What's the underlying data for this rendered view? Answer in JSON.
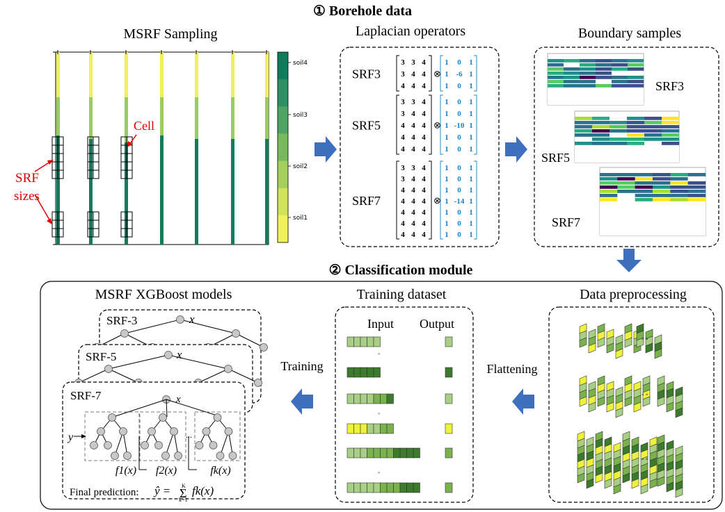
{
  "sections": {
    "borehole_title": "① Borehole data",
    "classification_title": "② Classification module"
  },
  "panels": {
    "msrf_sampling": {
      "title": "MSRF Sampling",
      "cell_label": "Cell",
      "srf_sizes_line1": "SRF",
      "srf_sizes_line2": "sizes",
      "soil_classes": [
        "soil4",
        "soil3",
        "soil2",
        "soil1"
      ]
    },
    "laplacian": {
      "title": "Laplacian operators",
      "operators": [
        {
          "name": "SRF3",
          "input": [
            [
              "3",
              "3",
              "4"
            ],
            [
              "3",
              "4",
              "4"
            ],
            [
              "4",
              "4",
              "4"
            ]
          ],
          "kernel": [
            [
              "1",
              "0",
              "1"
            ],
            [
              "1",
              "-6",
              "1"
            ],
            [
              "1",
              "0",
              "1"
            ]
          ]
        },
        {
          "name": "SRF5",
          "input": [
            [
              "3",
              "3",
              "4"
            ],
            [
              "3",
              "4",
              "4"
            ],
            [
              "4",
              "4",
              "4"
            ],
            [
              "4",
              "4",
              "4"
            ],
            [
              "4",
              "4",
              "4"
            ]
          ],
          "kernel": [
            [
              "1",
              "0",
              "1"
            ],
            [
              "1",
              "0",
              "1"
            ],
            [
              "1",
              "-10",
              "1"
            ],
            [
              "1",
              "0",
              "1"
            ],
            [
              "1",
              "0",
              "1"
            ]
          ]
        },
        {
          "name": "SRF7",
          "input": [
            [
              "3",
              "3",
              "4"
            ],
            [
              "3",
              "4",
              "4"
            ],
            [
              "4",
              "4",
              "4"
            ],
            [
              "4",
              "4",
              "4"
            ],
            [
              "4",
              "4",
              "4"
            ],
            [
              "4",
              "4",
              "4"
            ],
            [
              "4",
              "4",
              "4"
            ]
          ],
          "kernel": [
            [
              "1",
              "0",
              "1"
            ],
            [
              "1",
              "0",
              "1"
            ],
            [
              "1",
              "0",
              "1"
            ],
            [
              "1",
              "-14",
              "1"
            ],
            [
              "1",
              "0",
              "1"
            ],
            [
              "1",
              "0",
              "1"
            ],
            [
              "1",
              "0",
              "1"
            ]
          ]
        }
      ],
      "operator_symbol": "⊗"
    },
    "boundary": {
      "title": "Boundary samples",
      "labels": [
        "SRF3",
        "SRF5",
        "SRF7"
      ]
    },
    "preprocessing": {
      "title": "Data preprocessing",
      "flatten_label": "Flattening",
      "ellipsis": "◦ ◦"
    },
    "dataset": {
      "title": "Training dataset",
      "input_label": "Input",
      "output_label": "Output",
      "dots": "◦"
    },
    "models": {
      "title": "MSRF XGBoost models",
      "training_label": "Training",
      "cards": [
        "SRF-3",
        "SRF-5",
        "SRF-7"
      ],
      "tree_root_label": "x",
      "f_labels": [
        "f1(x)",
        "f2(x)",
        "fk(x)"
      ],
      "ellipsis": "...",
      "y_label": "y",
      "final_prediction": "Final prediction:",
      "formula_lhs": "ŷ =",
      "sum_symbol": "Σ",
      "formula_rhs": "fk(x)",
      "sum_upper": "K",
      "sum_lower": "k=1"
    }
  },
  "colors": {
    "soil4": "#0f7d5c",
    "soil3": "#3e9a62",
    "soil2": "#9bcc5e",
    "soil1": "#f0f05a",
    "arrow": "#3f6fbf",
    "annotation": "#e00000",
    "kernel_text": "#1f7fc0",
    "dark_green": "#3c7a2c",
    "mid_green": "#7ab34e",
    "light_green": "#a9cf85",
    "yellow": "#eef23c",
    "node": "#c8c8c8"
  }
}
